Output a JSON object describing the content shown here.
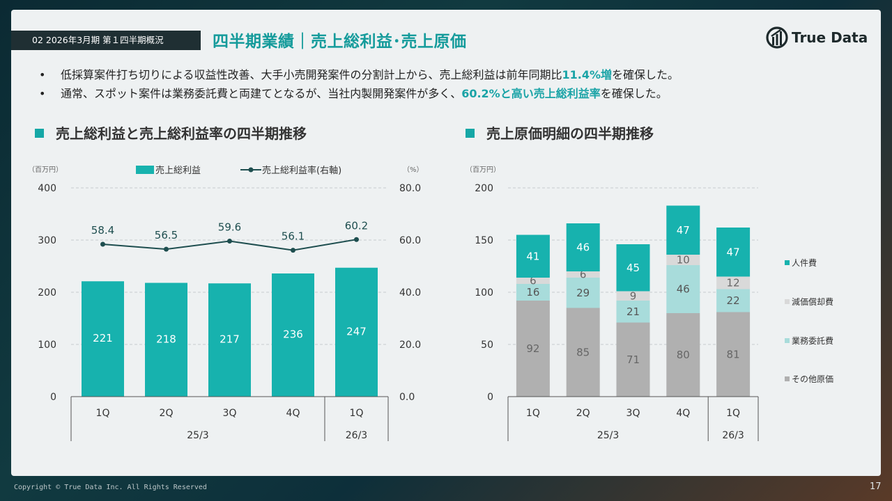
{
  "header": {
    "section_tag": "02 2026年3月期 第１四半期概況",
    "title": "四半期業績｜売上総利益･売上原価",
    "logo_text": "True Data"
  },
  "bullets": [
    {
      "pre": "低採算案件打ち切りによる収益性改善、大手小売開発案件の分割計上から、売上総利益は前年同期比",
      "hl": "11.4%増",
      "post": "を確保した。"
    },
    {
      "pre": "通常、スポット案件は業務委託費と両建てとなるが、当社内製開発案件が多く、",
      "hl": "60.2%と高い売上総利益率",
      "post": "を確保した。"
    }
  ],
  "section_titles": {
    "left": "売上総利益と売上総利益率の四半期推移",
    "right": "売上原価明細の四半期推移"
  },
  "footer": {
    "copyright": "Copyright © True Data Inc. All Rights Reserved",
    "page": "17"
  },
  "colors": {
    "teal": "#17b2ae",
    "dark_line": "#1e4e4f",
    "light_teal": "#a8dcdb",
    "light_gray": "#d9d9d9",
    "gray": "#b0b0b0"
  },
  "chart_data": [
    {
      "type": "bar",
      "y_unit_left": "（百万円）",
      "y_unit_right": "（%）",
      "categories": [
        "1Q",
        "2Q",
        "3Q",
        "4Q",
        "1Q"
      ],
      "groups": [
        {
          "label": "25/3",
          "span": 4
        },
        {
          "label": "26/3",
          "span": 1
        }
      ],
      "ylim": [
        0,
        400
      ],
      "yticks": [
        0,
        100,
        200,
        300,
        400
      ],
      "ylim_right": [
        0,
        80
      ],
      "yticks_right": [
        "0.0",
        "20.0",
        "40.0",
        "60.0",
        "80.0"
      ],
      "series": [
        {
          "name": "売上総利益",
          "type": "bar",
          "axis": "left",
          "values": [
            221,
            218,
            217,
            236,
            247
          ]
        },
        {
          "name": "売上総利益率(右軸)",
          "type": "line",
          "axis": "right",
          "values": [
            58.4,
            56.5,
            59.6,
            56.1,
            60.2
          ]
        }
      ],
      "legend": "top"
    },
    {
      "type": "bar",
      "stacked": true,
      "y_unit": "（百万円）",
      "categories": [
        "1Q",
        "2Q",
        "3Q",
        "4Q",
        "1Q"
      ],
      "groups": [
        {
          "label": "25/3",
          "span": 4
        },
        {
          "label": "26/3",
          "span": 1
        }
      ],
      "ylim": [
        0,
        200
      ],
      "yticks": [
        0,
        50,
        100,
        150,
        200
      ],
      "series": [
        {
          "name": "その他原価",
          "values": [
            92,
            85,
            71,
            80,
            81
          ]
        },
        {
          "name": "業務委託費",
          "values": [
            16,
            29,
            21,
            46,
            22
          ]
        },
        {
          "name": "減価償却費",
          "values": [
            6,
            6,
            9,
            10,
            12
          ]
        },
        {
          "name": "人件費",
          "values": [
            41,
            46,
            45,
            47,
            47
          ]
        }
      ],
      "legend": "right"
    }
  ]
}
